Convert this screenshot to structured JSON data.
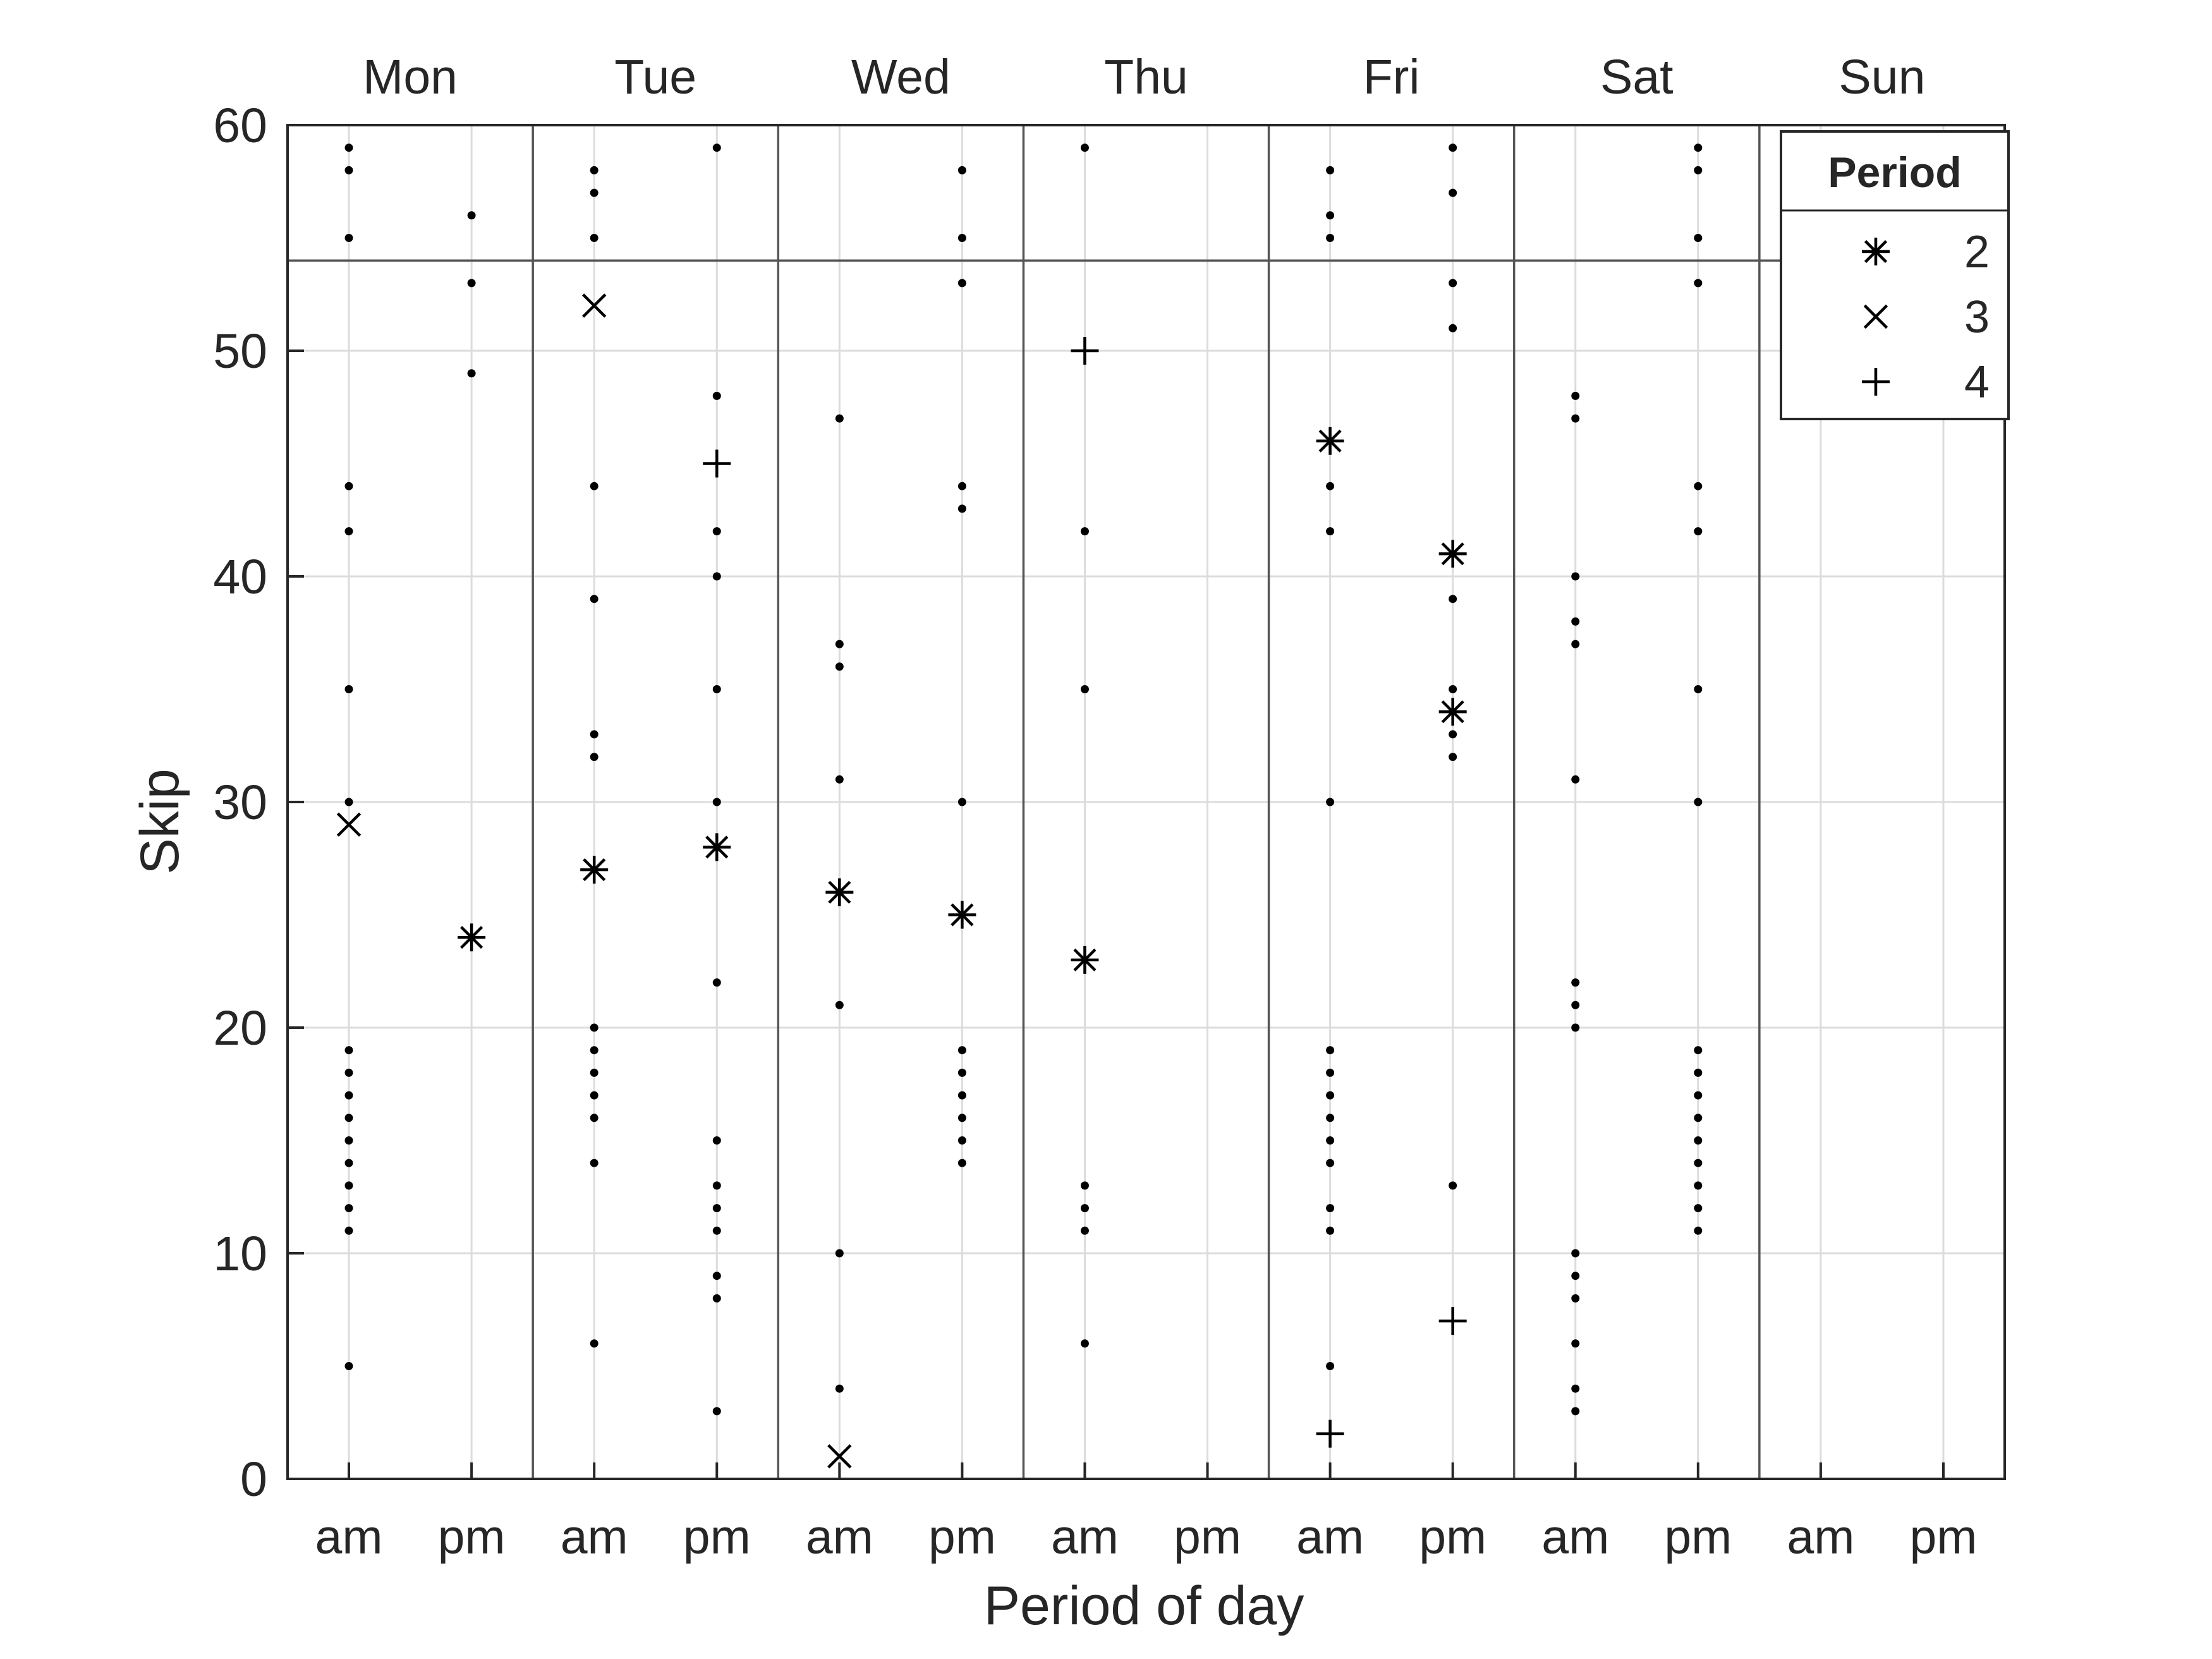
{
  "chart_data": {
    "type": "scatter",
    "xlabel": "Period of day",
    "ylabel": "Skip",
    "ylim": [
      0,
      60
    ],
    "yticks": [
      0,
      10,
      20,
      30,
      40,
      50,
      60
    ],
    "reference_line_y": 54,
    "days": [
      "Mon",
      "Tue",
      "Wed",
      "Thu",
      "Fri",
      "Sat",
      "Sun"
    ],
    "periods": [
      "am",
      "pm"
    ],
    "grid": true,
    "colors": {
      "marker": "#000000",
      "axis": "#262626",
      "grid": "#dcdcdc",
      "divider": "#555555"
    },
    "legend": {
      "title": "Period",
      "position": "top-right",
      "entries": [
        {
          "label": "2",
          "marker": "asterisk"
        },
        {
          "label": "3",
          "marker": "x"
        },
        {
          "label": "4",
          "marker": "plus"
        }
      ]
    },
    "dots": [
      {
        "day": "Mon",
        "period": "am",
        "values": [
          59,
          58,
          55,
          44,
          42,
          35,
          30,
          19,
          18,
          17,
          16,
          15,
          14,
          13,
          12,
          11,
          5
        ]
      },
      {
        "day": "Mon",
        "period": "pm",
        "values": [
          56,
          53,
          49
        ]
      },
      {
        "day": "Tue",
        "period": "am",
        "values": [
          58,
          57,
          55,
          44,
          39,
          33,
          32,
          20,
          19,
          18,
          17,
          16,
          14,
          6
        ]
      },
      {
        "day": "Tue",
        "period": "pm",
        "values": [
          59,
          48,
          42,
          40,
          35,
          30,
          22,
          15,
          13,
          12,
          11,
          9,
          8,
          3
        ]
      },
      {
        "day": "Wed",
        "period": "am",
        "values": [
          47,
          37,
          36,
          31,
          21,
          10,
          4
        ]
      },
      {
        "day": "Wed",
        "period": "pm",
        "values": [
          58,
          55,
          53,
          44,
          43,
          30,
          19,
          18,
          17,
          16,
          15,
          14
        ]
      },
      {
        "day": "Thu",
        "period": "am",
        "values": [
          59,
          42,
          35,
          13,
          12,
          11,
          6
        ]
      },
      {
        "day": "Fri",
        "period": "am",
        "values": [
          58,
          56,
          55,
          44,
          42,
          30,
          19,
          18,
          17,
          16,
          15,
          14,
          12,
          11,
          5
        ]
      },
      {
        "day": "Fri",
        "period": "pm",
        "values": [
          59,
          57,
          53,
          51,
          39,
          35,
          33,
          32,
          13
        ]
      },
      {
        "day": "Sat",
        "period": "am",
        "values": [
          48,
          47,
          40,
          38,
          37,
          31,
          22,
          21,
          20,
          10,
          9,
          8,
          6,
          4,
          3
        ]
      },
      {
        "day": "Sat",
        "period": "pm",
        "values": [
          59,
          58,
          55,
          53,
          44,
          42,
          35,
          30,
          19,
          18,
          17,
          16,
          15,
          14,
          13,
          12,
          11
        ]
      }
    ],
    "series": [
      {
        "name": "2",
        "marker": "asterisk",
        "points": [
          {
            "day": "Mon",
            "period": "pm",
            "y": 24
          },
          {
            "day": "Tue",
            "period": "am",
            "y": 27
          },
          {
            "day": "Tue",
            "period": "pm",
            "y": 28
          },
          {
            "day": "Wed",
            "period": "am",
            "y": 26
          },
          {
            "day": "Wed",
            "period": "pm",
            "y": 25
          },
          {
            "day": "Thu",
            "period": "am",
            "y": 23
          },
          {
            "day": "Fri",
            "period": "am",
            "y": 46
          },
          {
            "day": "Fri",
            "period": "pm",
            "y": 41
          },
          {
            "day": "Fri",
            "period": "pm",
            "y": 34
          }
        ]
      },
      {
        "name": "3",
        "marker": "x",
        "points": [
          {
            "day": "Mon",
            "period": "am",
            "y": 29
          },
          {
            "day": "Tue",
            "period": "am",
            "y": 52
          },
          {
            "day": "Wed",
            "period": "am",
            "y": 1
          }
        ]
      },
      {
        "name": "4",
        "marker": "plus",
        "points": [
          {
            "day": "Tue",
            "period": "pm",
            "y": 45
          },
          {
            "day": "Thu",
            "period": "am",
            "y": 50
          },
          {
            "day": "Fri",
            "period": "am",
            "y": 2
          },
          {
            "day": "Fri",
            "period": "pm",
            "y": 7
          }
        ]
      }
    ]
  }
}
